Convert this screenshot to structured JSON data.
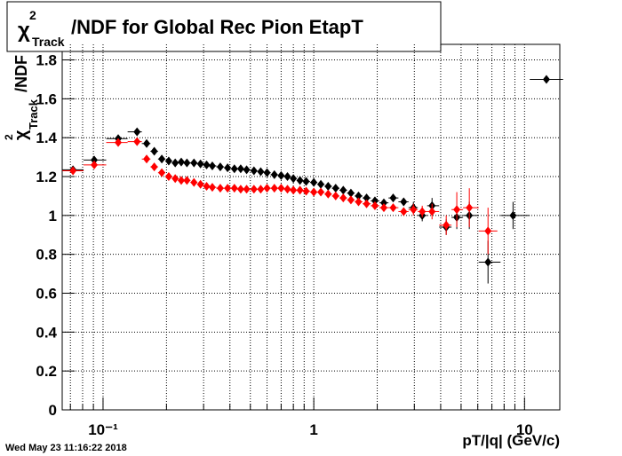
{
  "chart_data": {
    "type": "scatter",
    "title": {
      "symbol": "χ",
      "sup": "2",
      "sub": "Track",
      "text": "/NDF for Global Rec Pion EtapT"
    },
    "y_label": {
      "symbol": "χ",
      "sup": "2",
      "sub": "Track",
      "text": "/NDF"
    },
    "x_label": "pT/|q| (GeV/c)",
    "timestamp": "Wed May 23 11:16:22 2018",
    "log_x": true,
    "grid": true,
    "xlim": [
      0.064,
      14.7
    ],
    "ylim": [
      0,
      1.88
    ],
    "xticks": [
      {
        "value": 0.1,
        "label": "10⁻¹"
      },
      1,
      10
    ],
    "xminorticks": [
      0.07,
      0.08,
      0.09,
      0.2,
      0.3,
      0.4,
      0.5,
      0.6,
      0.7,
      0.8,
      0.9,
      2,
      3,
      4,
      5,
      6,
      7,
      8,
      9
    ],
    "yticks": [
      0,
      0.2,
      0.4,
      0.6,
      0.8,
      1,
      1.2,
      1.4,
      1.6,
      1.8
    ],
    "series": [
      {
        "color": "#000000",
        "x": [
          0.072,
          0.0908,
          0.118,
          0.145,
          0.161,
          0.175,
          0.19,
          0.205,
          0.22,
          0.235,
          0.25,
          0.27,
          0.29,
          0.31,
          0.33,
          0.36,
          0.39,
          0.42,
          0.45,
          0.48,
          0.52,
          0.56,
          0.6,
          0.65,
          0.7,
          0.75,
          0.8,
          0.86,
          0.92,
          1.0,
          1.08,
          1.17,
          1.27,
          1.38,
          1.5,
          1.63,
          1.78,
          1.95,
          2.15,
          2.38,
          2.67,
          2.97,
          3.27,
          3.64,
          4.25,
          4.77,
          5.47,
          6.71,
          8.82,
          12.7
        ],
        "values": [
          1.235,
          1.285,
          1.395,
          1.43,
          1.37,
          1.33,
          1.29,
          1.28,
          1.27,
          1.275,
          1.27,
          1.27,
          1.265,
          1.26,
          1.255,
          1.25,
          1.245,
          1.24,
          1.24,
          1.235,
          1.23,
          1.225,
          1.22,
          1.21,
          1.205,
          1.2,
          1.19,
          1.18,
          1.175,
          1.17,
          1.16,
          1.15,
          1.14,
          1.13,
          1.115,
          1.1,
          1.09,
          1.075,
          1.065,
          1.09,
          1.07,
          1.04,
          1.0,
          1.05,
          0.94,
          0.99,
          1.0,
          0.76,
          1.0,
          1.7
        ],
        "errors": [
          0.02,
          0.02,
          0.015,
          0.012,
          0.01,
          0.008,
          0.006,
          0.005,
          0.005,
          0.005,
          0.005,
          0.005,
          0.005,
          0.005,
          0.005,
          0.005,
          0.005,
          0.005,
          0.005,
          0.005,
          0.005,
          0.005,
          0.005,
          0.005,
          0.006,
          0.006,
          0.006,
          0.007,
          0.007,
          0.008,
          0.008,
          0.009,
          0.01,
          0.01,
          0.011,
          0.012,
          0.013,
          0.015,
          0.017,
          0.02,
          0.02,
          0.03,
          0.03,
          0.04,
          0.04,
          0.06,
          0.07,
          0.11,
          0.07,
          0.01
        ]
      },
      {
        "color": "#ff0000",
        "x": [
          0.072,
          0.0908,
          0.118,
          0.145,
          0.161,
          0.175,
          0.19,
          0.205,
          0.22,
          0.235,
          0.25,
          0.27,
          0.29,
          0.31,
          0.33,
          0.36,
          0.39,
          0.42,
          0.45,
          0.48,
          0.52,
          0.56,
          0.6,
          0.65,
          0.7,
          0.75,
          0.8,
          0.86,
          0.92,
          1.0,
          1.08,
          1.17,
          1.27,
          1.38,
          1.5,
          1.63,
          1.78,
          1.95,
          2.15,
          2.38,
          2.67,
          2.97,
          3.27,
          3.64,
          4.25,
          4.77,
          5.47,
          6.71
        ],
        "values": [
          1.23,
          1.26,
          1.375,
          1.38,
          1.29,
          1.25,
          1.22,
          1.2,
          1.19,
          1.18,
          1.18,
          1.17,
          1.16,
          1.15,
          1.145,
          1.14,
          1.14,
          1.14,
          1.135,
          1.135,
          1.135,
          1.135,
          1.14,
          1.14,
          1.14,
          1.135,
          1.13,
          1.13,
          1.125,
          1.12,
          1.12,
          1.11,
          1.1,
          1.09,
          1.08,
          1.07,
          1.06,
          1.05,
          1.04,
          1.04,
          1.02,
          1.03,
          1.02,
          1.02,
          0.95,
          1.03,
          1.04,
          0.92
        ],
        "errors": [
          0.02,
          0.02,
          0.015,
          0.012,
          0.01,
          0.008,
          0.006,
          0.005,
          0.005,
          0.005,
          0.005,
          0.005,
          0.005,
          0.005,
          0.005,
          0.005,
          0.005,
          0.005,
          0.005,
          0.005,
          0.005,
          0.005,
          0.005,
          0.005,
          0.006,
          0.006,
          0.006,
          0.007,
          0.007,
          0.008,
          0.008,
          0.009,
          0.01,
          0.01,
          0.011,
          0.012,
          0.013,
          0.015,
          0.017,
          0.02,
          0.02,
          0.03,
          0.03,
          0.04,
          0.05,
          0.09,
          0.1,
          0.12
        ]
      }
    ]
  }
}
